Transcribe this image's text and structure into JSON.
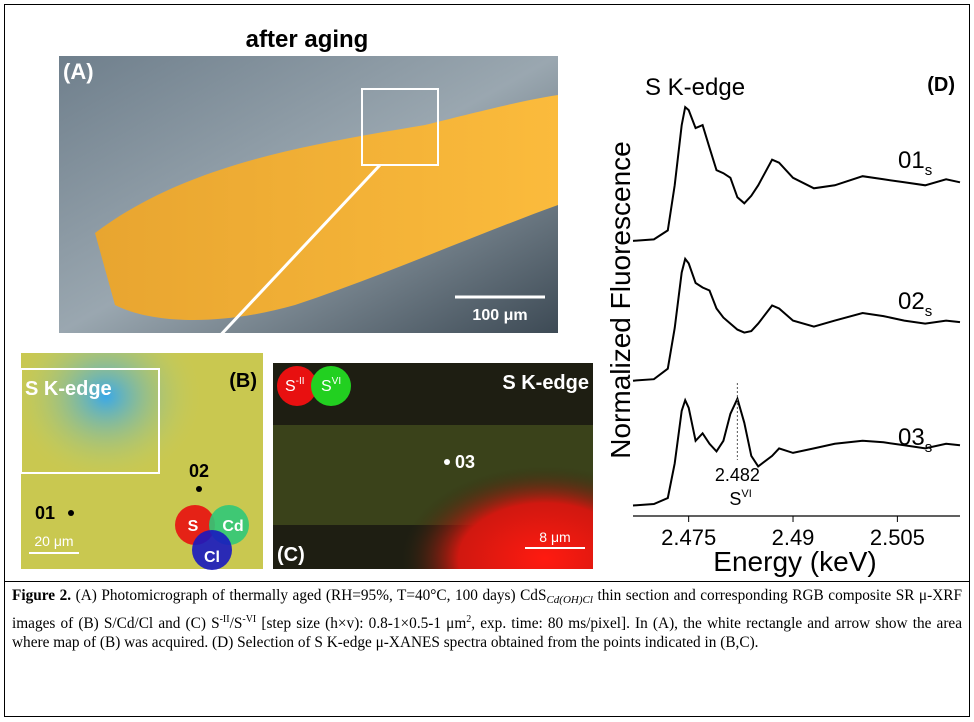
{
  "figure": {
    "panel_a": {
      "label": "(A)",
      "title": "after aging",
      "scale_bar": "100 μm"
    },
    "panel_b": {
      "label": "(B)",
      "title": "S K-edge",
      "point_1": "01",
      "point_2": "02",
      "scale_bar": "20 μm",
      "channels": [
        "S",
        "Cd",
        "Cl"
      ]
    },
    "panel_c": {
      "label": "(C)",
      "title": "S K-edge",
      "point": "03",
      "scale_bar": "8 μm",
      "species": [
        {
          "text": "S",
          "sup": "-II"
        },
        {
          "text": "S",
          "sup": "VI"
        }
      ]
    }
  },
  "chart_data": {
    "type": "line",
    "title": "S K-edge",
    "panel_label": "(D)",
    "x_label": "Energy (keV)",
    "y_label": "Normalized Fluorescence",
    "x": [
      2.467,
      2.47,
      2.472,
      2.473,
      2.474,
      2.4745,
      2.475,
      2.476,
      2.477,
      2.478,
      2.479,
      2.48,
      2.481,
      2.482,
      2.483,
      2.484,
      2.485,
      2.487,
      2.488,
      2.49,
      2.493,
      2.496,
      2.5,
      2.503,
      2.506,
      2.509,
      2.512,
      2.514
    ],
    "series": [
      {
        "name": "01",
        "name_sub": "s",
        "color": "#000000",
        "values": [
          1.83,
          1.84,
          1.9,
          2.2,
          2.6,
          2.72,
          2.7,
          2.58,
          2.6,
          2.45,
          2.3,
          2.28,
          2.25,
          2.12,
          2.08,
          2.13,
          2.2,
          2.37,
          2.35,
          2.25,
          2.18,
          2.2,
          2.26,
          2.24,
          2.22,
          2.2,
          2.24,
          2.22
        ]
      },
      {
        "name": "02",
        "name_sub": "s",
        "color": "#000000",
        "values": [
          0.9,
          0.91,
          0.98,
          1.25,
          1.62,
          1.71,
          1.68,
          1.55,
          1.52,
          1.5,
          1.38,
          1.32,
          1.28,
          1.24,
          1.22,
          1.23,
          1.28,
          1.4,
          1.38,
          1.3,
          1.26,
          1.3,
          1.35,
          1.33,
          1.3,
          1.28,
          1.3,
          1.29
        ]
      },
      {
        "name": "03",
        "name_sub": "s",
        "color": "#000000",
        "values": [
          0.07,
          0.08,
          0.12,
          0.35,
          0.7,
          0.77,
          0.72,
          0.5,
          0.55,
          0.48,
          0.43,
          0.5,
          0.68,
          0.78,
          0.62,
          0.4,
          0.33,
          0.4,
          0.45,
          0.42,
          0.45,
          0.48,
          0.5,
          0.49,
          0.47,
          0.45,
          0.48,
          0.47
        ]
      }
    ],
    "xlim": [
      2.467,
      2.514
    ],
    "ylim": [
      0,
      3
    ],
    "xticks": [
      2.475,
      2.49,
      2.505
    ],
    "annotation": {
      "x": 2.482,
      "text": "S",
      "sup": "VI"
    }
  },
  "caption": [
    {
      "text": "Figure 2.",
      "style": "bold"
    },
    {
      "text": " (A) Photomicrograph of thermally aged (RH=95%, T=40°C, 100 days) CdS",
      "style": "normal"
    },
    {
      "text": "Cd(OH)Cl",
      "style": "sub-italic"
    },
    {
      "text": " thin section and corresponding RGB composite SR μ-XRF images of (B) S/Cd/Cl and (C) S",
      "style": "normal"
    },
    {
      "text": "-II",
      "style": "sup"
    },
    {
      "text": "/S",
      "style": "normal"
    },
    {
      "text": "-VI",
      "style": "sup"
    },
    {
      "text": " [step size (h×v): 0.8-1×0.5-1 μm",
      "style": "normal"
    },
    {
      "text": "2",
      "style": "sup"
    },
    {
      "text": ", exp. time: 80 ms/pixel]. In (A), the white rectangle and arrow show the area where map of (B) was acquired. (D) Selection of S K-edge μ-XANES spectra obtained from the points indicated in (B,C).",
      "style": "normal"
    }
  ]
}
